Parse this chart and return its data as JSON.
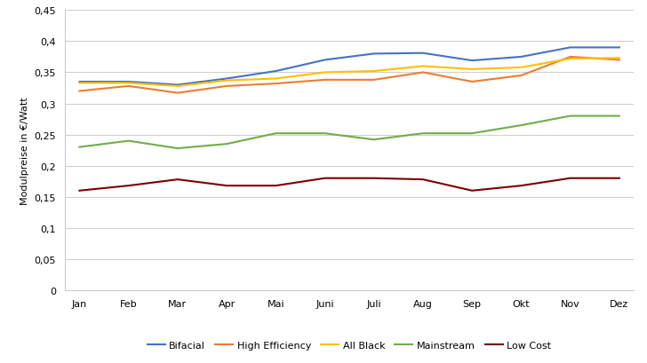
{
  "months": [
    "Jan",
    "Feb",
    "Mar",
    "Apr",
    "Mai",
    "Juni",
    "Juli",
    "Aug",
    "Sep",
    "Okt",
    "Nov",
    "Dez"
  ],
  "series": {
    "Bifacial": [
      0.335,
      0.335,
      0.33,
      0.34,
      0.352,
      0.37,
      0.38,
      0.381,
      0.369,
      0.375,
      0.39,
      0.39
    ],
    "High Efficiency": [
      0.32,
      0.328,
      0.317,
      0.328,
      0.332,
      0.338,
      0.338,
      0.35,
      0.335,
      0.345,
      0.375,
      0.37
    ],
    "All Black": [
      0.333,
      0.333,
      0.328,
      0.337,
      0.34,
      0.35,
      0.352,
      0.36,
      0.355,
      0.358,
      0.372,
      0.373
    ],
    "Mainstream": [
      0.23,
      0.24,
      0.228,
      0.235,
      0.252,
      0.252,
      0.242,
      0.252,
      0.252,
      0.265,
      0.28,
      0.28
    ],
    "Low Cost": [
      0.16,
      0.168,
      0.178,
      0.168,
      0.168,
      0.18,
      0.18,
      0.178,
      0.16,
      0.168,
      0.18,
      0.18
    ]
  },
  "colors": {
    "Bifacial": "#4472C4",
    "High Efficiency": "#ED7D31",
    "All Black": "#FFC000",
    "Mainstream": "#70AD47",
    "Low Cost": "#7B0000"
  },
  "ylabel": "Modulpreise in €/Watt",
  "ylim": [
    0,
    0.45
  ],
  "yticks": [
    0,
    0.05,
    0.1,
    0.15,
    0.2,
    0.25,
    0.3,
    0.35,
    0.4,
    0.45
  ],
  "ytick_labels": [
    "0",
    "0,05",
    "0,1",
    "0,15",
    "0,2",
    "0,25",
    "0,3",
    "0,35",
    "0,4",
    "0,45"
  ],
  "background_color": "#ffffff",
  "grid_color": "#d0d0d0",
  "legend_order": [
    "Bifacial",
    "High Efficiency",
    "All Black",
    "Mainstream",
    "Low Cost"
  ],
  "tick_fontsize": 8,
  "ylabel_fontsize": 8,
  "legend_fontsize": 8,
  "linewidth": 1.5
}
